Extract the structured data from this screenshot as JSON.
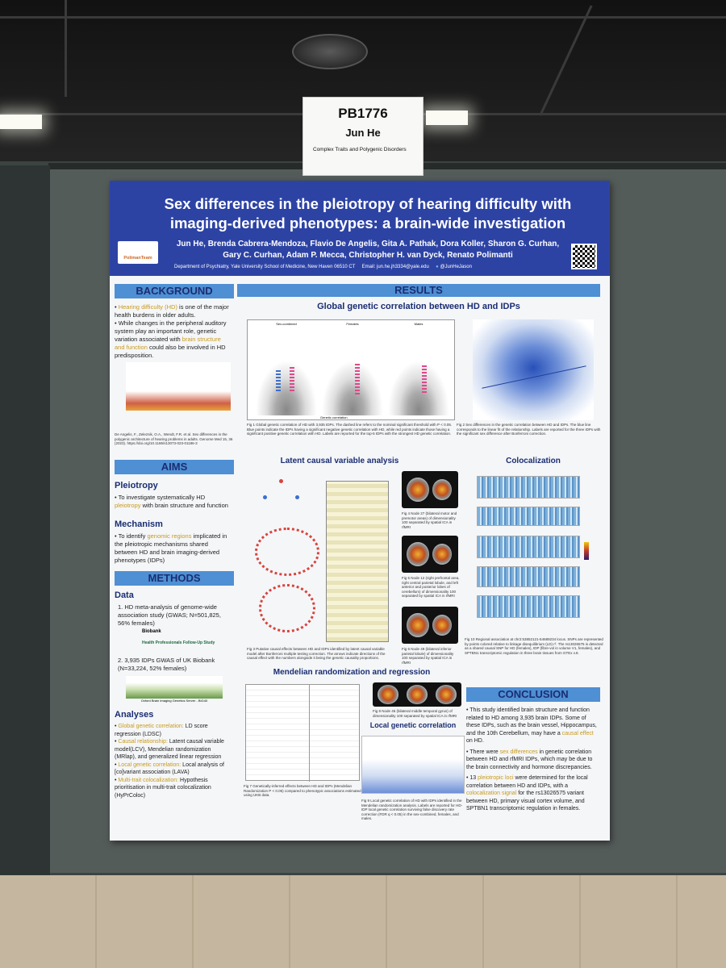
{
  "card": {
    "id": "PB1776",
    "name": "Jun He",
    "session": "Complex Traits and Polygenic Disorders"
  },
  "poster": {
    "title": "Sex differences in the pleiotropy of hearing difficulty with imaging-derived phenotypes: a brain-wide investigation",
    "authors_line1": "Jun He, Brenda Cabrera-Mendoza, Flavio De Angelis, Gita A. Pathak, Dora Koller, Sharon G. Curhan,",
    "authors_line2": "Gary C. Curhan, Adam P. Mecca, Christopher H. van Dyck, Renato Polimanti",
    "affiliation": "Department of Psychiatry, Yale University School of Medicine, New Haven 06510 CT",
    "email": "Email: jun.he.jh3334@yale.edu",
    "twitter": "@JunHeJason",
    "logo_label": "PolimanTeam"
  },
  "sections": {
    "background": "BACKGROUND",
    "results": "RESULTS",
    "aims": "AIMS",
    "methods": "METHODS",
    "conclusion": "CONCLUSION"
  },
  "background": {
    "p1_hl": "Hearing difficulty (HD)",
    "p1_rest": " is one of the major health burdens in older adults.",
    "p2_a": "While changes in the peripheral auditory system play an important role, genetic variation associated with ",
    "p2_hl": "brain structure and function",
    "p2_b": " could also be involved in HD predisposition.",
    "ref": "De Angelis, F., Zeleznik, O.A., Wendt, F.R. et al. Sex differences in the polygenic architecture of hearing problems in adults. Genome Med 15, 36 (2023). https://doi.org/10.1186/s13073-023-01186-3"
  },
  "aims": {
    "pleiotropy_head": "Pleiotropy",
    "pleiotropy_a": "To investigate systematically HD ",
    "pleiotropy_hl": "pleiotropy",
    "pleiotropy_b": " with brain structure and function",
    "mechanism_head": "Mechanism",
    "mechanism_a": "To identify ",
    "mechanism_hl": "genomic regions",
    "mechanism_b": " implicated in the pleiotropic mechanisms shared between HD and brain imaging-derived phenotypes (IDPs)"
  },
  "methods": {
    "data_head": "Data",
    "data1": "1. HD meta-analysis of genome-wide association study (GWAS; N=501,825, 56% females)",
    "biobank": "Biobank",
    "hpfs": "Health Professionals Follow-Up Study",
    "data2": "2. 3,935 IDPs GWAS of UK Biobank (N=33,224, 52% females)",
    "oxford": "Oxford Brain Imaging Genetics Server - BIG40",
    "analyses_head": "Analyses",
    "a1_hl": "Global genetic correlation:",
    "a1": " LD score regression (LDSC)",
    "a2_hl": "Causal relationship:",
    "a2": " Latent causal variable model(LCV), Mendelian randomization (MRlap), and generalized linear regression",
    "a3_hl": "Local genetic correlation:",
    "a3": " Local analysis of [co]variant association (LAVA)",
    "a4_hl": "Multi-trait colocalization:",
    "a4": " Hypothesis prioritisation in multi-trait colocalization (HyPrColoc)"
  },
  "results": {
    "global_title": "Global genetic correlation between HD and IDPs",
    "panel_labels": [
      "Sex-combined",
      "Females",
      "Males"
    ],
    "x_axis": "Genetic correlation",
    "fig1": "Fig 1 Global genetic correlation of HD with 3,935 IDPs. The dashed line refers to the nominal significant threshold with P < 0.05. Blue points indicate the IDPs having a significant negative genetic correlation with HD, while red points indicate those having a significant positive genetic correlation with HD. Labels are reported for the top-5 IDPs with the strongest HD genetic correlation.",
    "fig2": "Fig 2 Sex differences in the genetic correlation between HD and IDPs. The blue line corresponds to the linear fit of the relationship. Labels are reported for the three IDPs with the significant sex difference after Bonferroni correction.",
    "lcv_title": "Latent causal variable analysis",
    "fig3": "Fig 3 Putative causal effects between HD and IDPs identified by latent causal variable model after Bonferroni multiple testing correction. The arrows indicate directions of the causal effect with the numbers alongside it being the genetic causality proportions.",
    "fig4": "Fig 4 Node 27 (bilateral motor and premotor areas) of dimensionality 100 separated by spatial ICA in rfMRI",
    "fig5": "Fig 5 Node 12 (right prefrontal area, right central parietal lobule, and left anterior and posterior lobes of cerebellum) of dimensionality 100 separated by spatial ICA in rfMRI",
    "fig6": "Fig 6 Node 49 (bilateral inferior parietal lobule) of dimensionality 100 separated by spatial ICA in rfMRI",
    "coloc_title": "Colocalization",
    "fig10": "Fig 10 Regional association at chr2:53852121-54689234 locus. SNPs are represented by points colored relative to linkage disequilibrium (LD) r². The rs13026575 is detected as a shared causal SNP for HD (females), IDP (fibre-vol in volume V1, females), and SPTBN1 transcriptomic regulation in three brain tissues from GTEx v.8.",
    "mr_title": "Mendelian randomization and regression",
    "fig7": "Fig 7 Genetically-inferred effects between HD and IDPs (Mendelian Randomization P < 0.05) compared to phenotypic associations estimated using UKB data.",
    "fig8": "Fig 8 Node 46 (bilateral middle temporal gyrus) of dimensionality 100 separated by spatial ICA in rfMRI",
    "local_title": "Local genetic correlation",
    "fig9": "Fig 9 Local genetic correlation of HD with IDPs identified in the Mendelian randomization analysis. Labels are reported for HD-IDP local genetic correlation surviving false discovery rate correction (FDR q < 0.05) in the sex-combined, females, and males."
  },
  "conclusion": {
    "c1_a": "This study identified brain structure and function related to HD among 3,935 brain IDPs. Some of these IDPs, such as the brain vessel, Hippocampus, and the 10th Cerebellum, may have a ",
    "c1_hl": "causal effect",
    "c1_b": " on HD.",
    "c2_a": "There were ",
    "c2_hl": "sex differences",
    "c2_b": " in genetic correlation between HD and rfMRI IDPs, which may be due to the brain connectivity and hormone discrepancies.",
    "c3_a": "13 ",
    "c3_hl": "pleiotropic loci",
    "c3_b": " were determined for the local correlation between HD and IDPs, with a ",
    "c3_hl2": "colocalization signal",
    "c3_c": " for the rs13026575 variant between HD, primary visual cortex volume, and SPTBN1 transcriptomic regulation in females."
  },
  "colors": {
    "header_blue": "#2d43a4",
    "section_blue": "#4f8fd3",
    "highlight": "#c89a1d",
    "board": "#545c5a"
  }
}
